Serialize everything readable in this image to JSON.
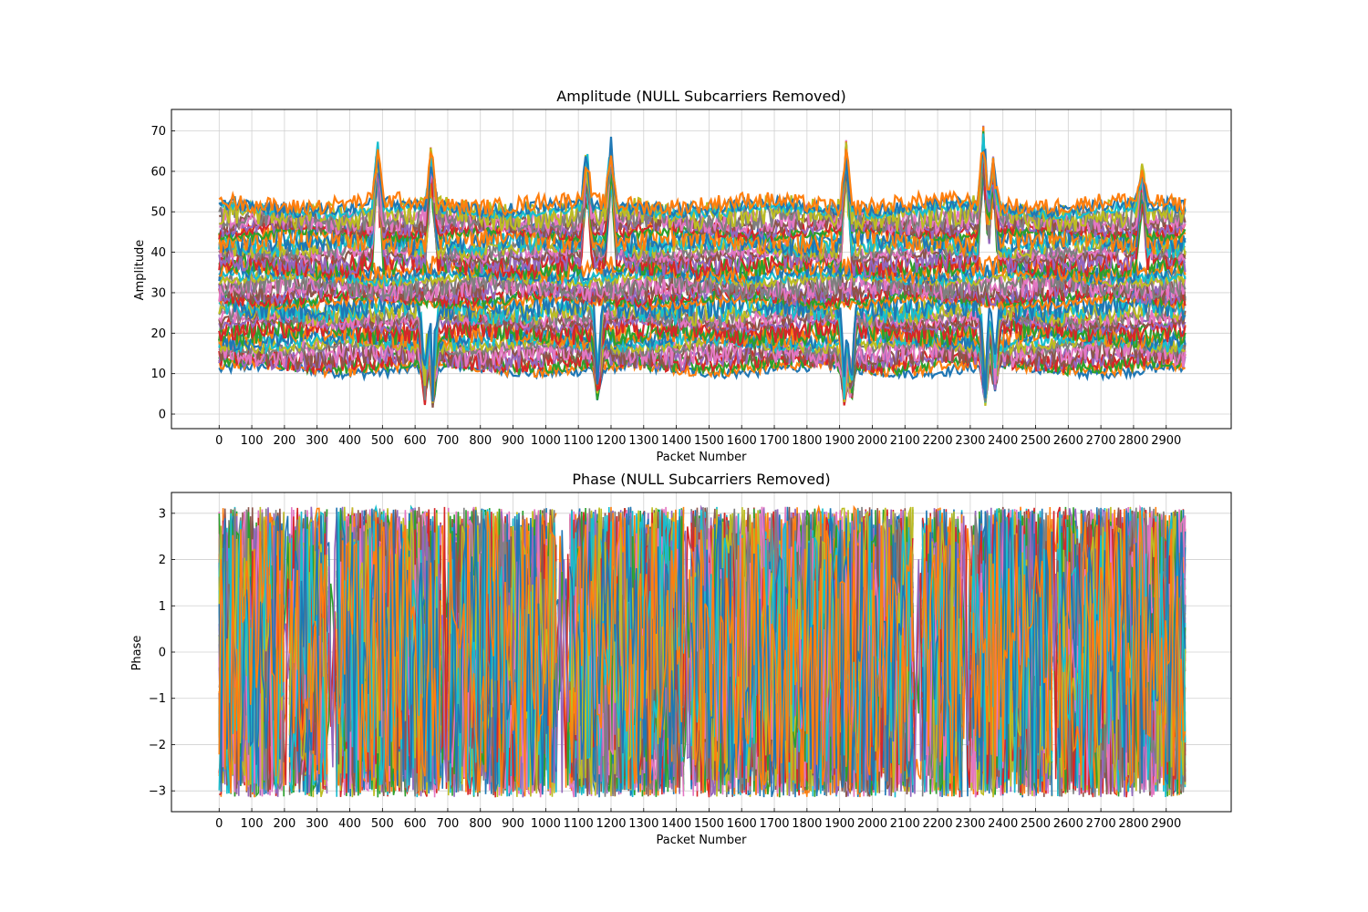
{
  "chart_data": [
    {
      "type": "line",
      "title": "Amplitude (NULL Subcarriers Removed)",
      "xlabel": "Packet Number",
      "ylabel": "Amplitude",
      "xlim": [
        -146,
        3099
      ],
      "ylim": [
        -3.6,
        75.3
      ],
      "xticks": [
        "0",
        "100",
        "200",
        "300",
        "400",
        "500",
        "600",
        "700",
        "800",
        "900",
        "1000",
        "1100",
        "1200",
        "1300",
        "1400",
        "1500",
        "1600",
        "1700",
        "1800",
        "1900",
        "2000",
        "2100",
        "2200",
        "2300",
        "2400",
        "2500",
        "2600",
        "2700",
        "2800",
        "2900"
      ],
      "yticks": [
        "0",
        "10",
        "20",
        "30",
        "40",
        "50",
        "60",
        "70"
      ],
      "grid": true,
      "legend": "none",
      "x_range": [
        0,
        2960
      ],
      "series_count": 52,
      "y_min": 0,
      "y_max": 71.5,
      "band_low": 11,
      "band_high": 52,
      "spikes": [
        {
          "x": 485,
          "y": 69
        },
        {
          "x": 650,
          "y": 68.5
        },
        {
          "x": 1125,
          "y": 67
        },
        {
          "x": 1200,
          "y": 69.5
        },
        {
          "x": 1920,
          "y": 68.5
        },
        {
          "x": 2340,
          "y": 71.5
        },
        {
          "x": 2370,
          "y": 64
        },
        {
          "x": 2825,
          "y": 63
        }
      ],
      "dips": [
        {
          "x": 630,
          "y": 2
        },
        {
          "x": 655,
          "y": 0.5
        },
        {
          "x": 1160,
          "y": 2
        },
        {
          "x": 1915,
          "y": 1
        },
        {
          "x": 1935,
          "y": 1
        },
        {
          "x": 2345,
          "y": 0
        },
        {
          "x": 2375,
          "y": 4.5
        }
      ]
    },
    {
      "type": "line",
      "title": "Phase (NULL Subcarriers Removed)",
      "xlabel": "Packet Number",
      "ylabel": "Phase",
      "xlim": [
        -146,
        3099
      ],
      "ylim": [
        -3.45,
        3.45
      ],
      "xticks": [
        "0",
        "100",
        "200",
        "300",
        "400",
        "500",
        "600",
        "700",
        "800",
        "900",
        "1000",
        "1100",
        "1200",
        "1300",
        "1400",
        "1500",
        "1600",
        "1700",
        "1800",
        "1900",
        "2000",
        "2100",
        "2200",
        "2300",
        "2400",
        "2500",
        "2600",
        "2700",
        "2800",
        "2900"
      ],
      "yticks": [
        "3",
        "2",
        "1",
        "0",
        "−1",
        "−2",
        "−3"
      ],
      "ytick_values": [
        3,
        2,
        1,
        0,
        -1,
        -2,
        -3
      ],
      "grid": true,
      "legend": "none",
      "x_range": [
        0,
        2960
      ],
      "series_count": 52,
      "y_min": -3.14,
      "y_max": 3.14,
      "wrap_gaps": [
        {
          "from": 200,
          "to": 215
        },
        {
          "from": 335,
          "to": 355
        },
        {
          "from": 680,
          "to": 700
        },
        {
          "from": 1035,
          "to": 1070
        },
        {
          "from": 1425,
          "to": 1440
        },
        {
          "from": 2130,
          "to": 2150
        },
        {
          "from": 2280,
          "to": 2300
        },
        {
          "from": 2555,
          "to": 2565
        }
      ]
    }
  ],
  "palette": [
    "#1f77b4",
    "#ff7f0e",
    "#2ca02c",
    "#d62728",
    "#9467bd",
    "#8c564b",
    "#e377c2",
    "#7f7f7f",
    "#bcbd22",
    "#17becf"
  ]
}
